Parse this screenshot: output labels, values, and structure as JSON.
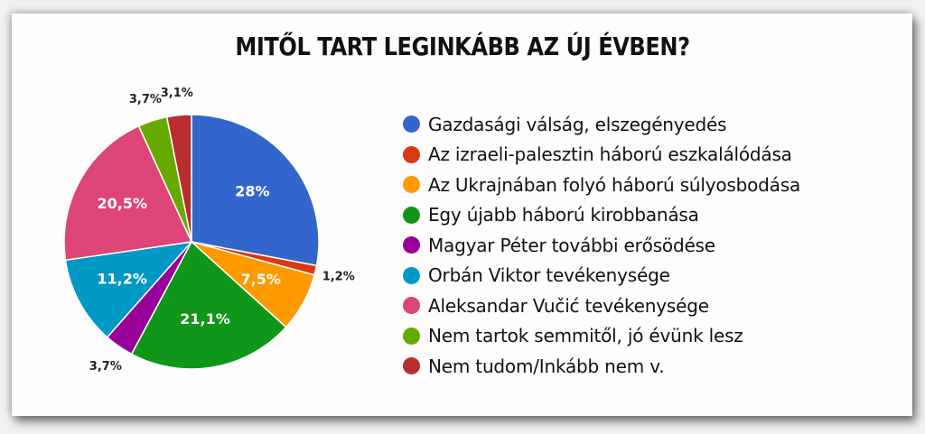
{
  "chart_data": {
    "type": "pie",
    "title": "MITŐL TART LEGINKÁBB AZ ÚJ ÉVBEN?",
    "categories": [
      "Gazdasági válság, elszegényedés",
      "Az izraeli-palesztin háború eszkalálódása",
      "Az Ukrajnában folyó háború súlyosbodása",
      "Egy újabb háború kirobbanása",
      "Magyar Péter további erősödése",
      "Orbán Viktor tevékenysége",
      "Aleksandar Vučić tevékenysége",
      "Nem tartok semmitől, jó évünk lesz",
      "Nem tudom/Inkább nem v."
    ],
    "values": [
      28,
      1.2,
      7.5,
      21.1,
      3.7,
      11.2,
      20.5,
      3.7,
      3.1
    ],
    "labels": [
      "28%",
      "1,2%",
      "7,5%",
      "21,1%",
      "3,7%",
      "11,2%",
      "20,5%",
      "3,7%",
      "3,1%"
    ],
    "colors": [
      "#3366cc",
      "#dc3912",
      "#ff9900",
      "#109618",
      "#990099",
      "#0099c6",
      "#dd4477",
      "#66aa00",
      "#b82e2e"
    ],
    "legend_position": "right",
    "start_angle": "12 o'clock, clockwise"
  },
  "header": {
    "title": "MITŐL TART LEGINKÁBB AZ ÚJ ÉVBEN?"
  }
}
